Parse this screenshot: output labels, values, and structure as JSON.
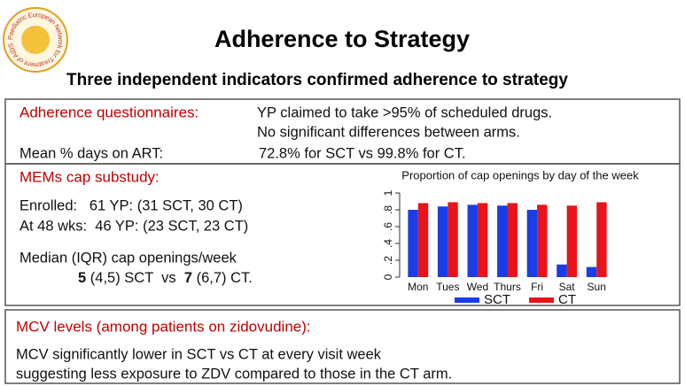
{
  "header": {
    "title": "Adherence to Strategy",
    "subtitle": "Three independent indicators confirmed adherence to strategy",
    "logo_text": "Paediatric European Network for Treatment of AIDS"
  },
  "questionnaires": {
    "heading": "Adherence questionnaires:",
    "lines": [
      "YP claimed to take >95% of scheduled drugs.",
      "No significant differences between arms."
    ],
    "label": "Mean % days on ART:",
    "value": "72.8% for SCT vs 99.8% for CT."
  },
  "mems": {
    "heading": "MEMs cap substudy:",
    "lines": [
      "Enrolled:   61 YP: (31 SCT, 30 CT)",
      "At 48 wks:  46 YP: (23 SCT, 23 CT)",
      "Median (IQR) cap openings/week"
    ],
    "result": [
      "5",
      " (4,5) SCT  vs  ",
      "7",
      " (6,7) CT."
    ]
  },
  "chart_data": {
    "type": "bar",
    "title": "Proportion of cap openings by day of the week",
    "categories": [
      "Mon",
      "Tues",
      "Wed",
      "Thurs",
      "Fri",
      "Sat",
      "Sun"
    ],
    "series": [
      {
        "name": "SCT",
        "color": "#1a3de8",
        "values": [
          0.8,
          0.84,
          0.86,
          0.85,
          0.8,
          0.15,
          0.12
        ]
      },
      {
        "name": "CT",
        "color": "#e81419",
        "values": [
          0.88,
          0.89,
          0.88,
          0.88,
          0.86,
          0.85,
          0.89
        ]
      }
    ],
    "ylim": [
      0,
      1
    ],
    "yticks": [
      0,
      {
        "value": 0.2,
        "label": ".2"
      },
      {
        "value": 0.4,
        "label": ".4"
      },
      {
        "value": 0.6,
        "label": ".6"
      },
      {
        "value": 0.8,
        "label": ".8"
      },
      1
    ],
    "legend": "bottom"
  },
  "mcv": {
    "heading": "MCV levels (among patients on zidovudine):",
    "lines": [
      "MCV significantly lower in SCT vs CT at every visit week",
      "suggesting less exposure to ZDV compared to those in the CT arm."
    ]
  }
}
